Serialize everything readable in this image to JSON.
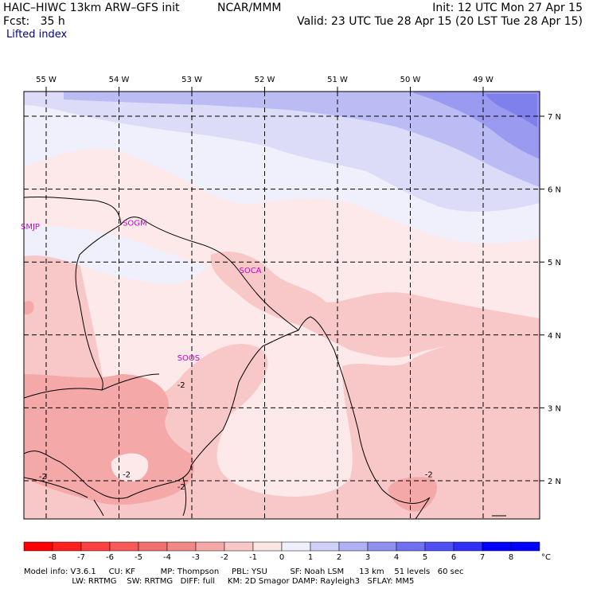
{
  "header": {
    "model_line": "HAIC–HIWC 13km ARW–GFS init",
    "institution": "NCAR/MMM",
    "init": "Init: 12 UTC Mon 27 Apr 15",
    "fcst": "Fcst:   35 h",
    "valid": "Valid: 23 UTC Tue 28 Apr 15 (20 LST Tue 28 Apr 15)",
    "field": "Lifted index"
  },
  "longitudes": [
    {
      "label": "55 W",
      "lon": -55
    },
    {
      "label": "54 W",
      "lon": -54
    },
    {
      "label": "53 W",
      "lon": -53
    },
    {
      "label": "52 W",
      "lon": -52
    },
    {
      "label": "51 W",
      "lon": -51
    },
    {
      "label": "50 W",
      "lon": -50
    },
    {
      "label": "49 W",
      "lon": -49
    }
  ],
  "latitudes": [
    {
      "label": "7 N",
      "lat": 7
    },
    {
      "label": "6 N",
      "lat": 6
    },
    {
      "label": "5 N",
      "lat": 5
    },
    {
      "label": "4 N",
      "lat": 4
    },
    {
      "label": "3 N",
      "lat": 3
    },
    {
      "label": "2 N",
      "lat": 2
    }
  ],
  "stations": [
    {
      "id": "SMJP",
      "lon": -55.35,
      "lat": 5.45
    },
    {
      "id": "SOGM",
      "lon": -53.95,
      "lat": 5.5
    },
    {
      "id": "SOCA",
      "lon": -52.35,
      "lat": 4.85
    },
    {
      "id": "SOOS",
      "lon": -53.2,
      "lat": 3.65
    }
  ],
  "contour_labels": [
    {
      "text": "-2",
      "lon": -53.2,
      "lat": 3.28
    },
    {
      "text": "-2",
      "lon": -55.1,
      "lat": 2.02
    },
    {
      "text": "-2",
      "lon": -53.95,
      "lat": 2.05
    },
    {
      "text": "-2",
      "lon": -53.2,
      "lat": 1.88
    },
    {
      "text": "-2",
      "lon": -49.8,
      "lat": 2.05
    }
  ],
  "colorbar": {
    "ticks": [
      "-8",
      "-7",
      "-6",
      "-5",
      "-4",
      "-3",
      "-2",
      "-1",
      "0",
      "1",
      "2",
      "3",
      "4",
      "5",
      "6",
      "7",
      "8"
    ],
    "unit": "°C",
    "colors": [
      "#ff0000",
      "#ff2020",
      "#ff4040",
      "#f85a5a",
      "#f07070",
      "#f08888",
      "#f5a8a8",
      "#f8c8c8",
      "#fbe6e6",
      "#f0f0fc",
      "#d0d0f8",
      "#b0b0f4",
      "#9090f0",
      "#7070f0",
      "#5050f4",
      "#3030f8",
      "#0000ff"
    ]
  },
  "footer": {
    "line1": "Model info: V3.6.1     CU: KF          MP: Thompson     PBL: YSU         SF: Noah LSM      13 km    51 levels   60 sec",
    "line2": "                   LW: RRTMG    SW: RRTMG   DIFF: full     KM: 2D Smagor DAMP: Rayleigh3   SFLAY: MM5"
  }
}
